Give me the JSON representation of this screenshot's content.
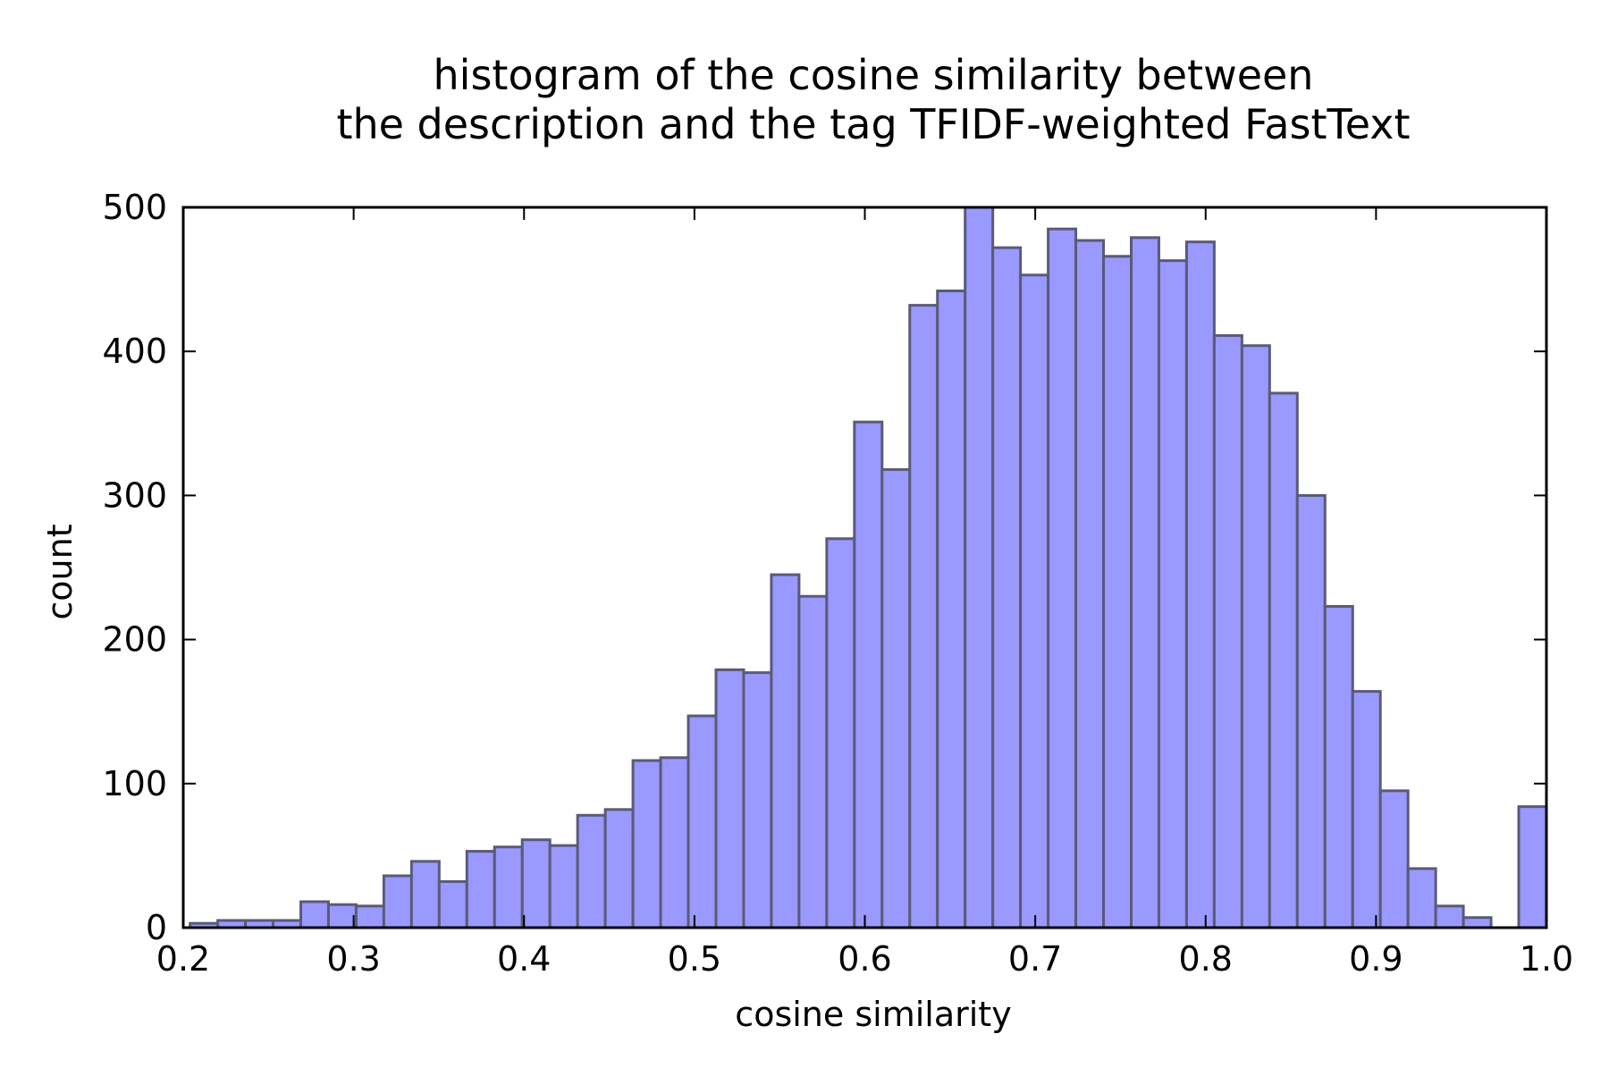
{
  "chart_data": {
    "type": "bar",
    "title": "histogram of the cosine similarity between\nthe description and the tag TFIDF-weighted FastText",
    "title_lines": [
      "histogram of the cosine similarity between",
      "the description and the tag TFIDF-weighted FastText"
    ],
    "xlabel": "cosine similarity",
    "ylabel": "count",
    "xlim": [
      0.2,
      1.0
    ],
    "ylim": [
      0,
      500
    ],
    "x_ticks": [
      "0.2",
      "0.3",
      "0.4",
      "0.5",
      "0.6",
      "0.7",
      "0.8",
      "0.9",
      "1.0"
    ],
    "y_ticks": [
      "0",
      "100",
      "200",
      "300",
      "400",
      "500"
    ],
    "grid": false,
    "legend": "none",
    "bar_color": "#9999ff",
    "bar_edge_color": "#5a5a78",
    "bins": {
      "start": 0.204,
      "end": 1.0,
      "count": 49
    },
    "values": [
      3,
      5,
      5,
      5,
      18,
      16,
      15,
      36,
      46,
      32,
      53,
      56,
      61,
      57,
      78,
      82,
      116,
      118,
      147,
      179,
      177,
      245,
      230,
      270,
      351,
      318,
      432,
      442,
      500,
      472,
      453,
      485,
      477,
      466,
      479,
      463,
      476,
      411,
      404,
      371,
      300,
      223,
      164,
      95,
      41,
      15,
      7,
      0,
      84
    ]
  }
}
